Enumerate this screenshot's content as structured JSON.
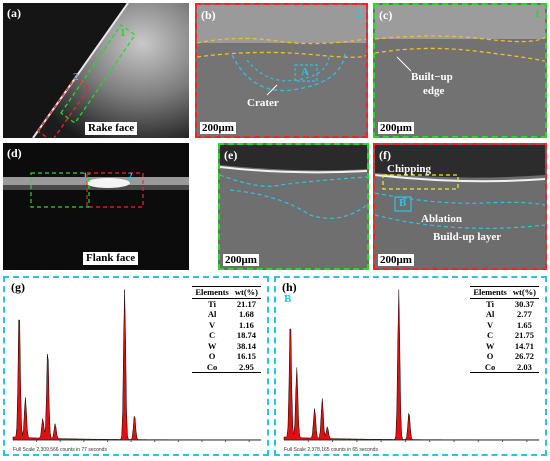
{
  "panels": {
    "a": {
      "letter": "(a)",
      "caption": "Rake face",
      "region_1": "1",
      "region_2": "2"
    },
    "b": {
      "letter": "(b)",
      "index": "2",
      "crater": "Crater",
      "marker": "A",
      "scale": "200μm"
    },
    "c": {
      "letter": "(c)",
      "index": "1",
      "bue_line1": "Built−up",
      "bue_line2": "edge",
      "scale": "200μm"
    },
    "d": {
      "letter": "(d)",
      "caption": "Flank face",
      "marker_1": "1",
      "marker_2": "2"
    },
    "e": {
      "letter": "(e)",
      "scale": "200μm"
    },
    "f": {
      "letter": "(f)",
      "chipping": "Chipping",
      "marker": "B",
      "ablation": "Ablation",
      "layer": "Build-up layer",
      "scale": "200μm"
    }
  },
  "colors": {
    "green": "#22dd22",
    "red": "#ff2020",
    "cyan": "#29c4e8",
    "yellow": "#f0c020",
    "peak": "#e01010"
  },
  "edsA": {
    "letter": "(g)",
    "footer": "Full Scale 2,309,566 counts in 77 seconds",
    "header": [
      "Elements",
      "wt(%)"
    ],
    "rows": [
      [
        "Ti",
        "21.17"
      ],
      [
        "Al",
        "1.68"
      ],
      [
        "V",
        "1.16"
      ],
      [
        "C",
        "18.74"
      ],
      [
        "W",
        "38.14"
      ],
      [
        "O",
        "16.15"
      ],
      [
        "Co",
        "2.95"
      ]
    ]
  },
  "edsB": {
    "letter": "(h)",
    "marker": "B",
    "footer": "Full Scale 2,378,165 counts in 65 seconds",
    "header": [
      "Elements",
      "wt(%)"
    ],
    "rows": [
      [
        "Ti",
        "30.37"
      ],
      [
        "Al",
        "2.77"
      ],
      [
        "V",
        "1.65"
      ],
      [
        "C",
        "21.75"
      ],
      [
        "W",
        "14.71"
      ],
      [
        "O",
        "26.72"
      ],
      [
        "Co",
        "2.03"
      ]
    ]
  }
}
